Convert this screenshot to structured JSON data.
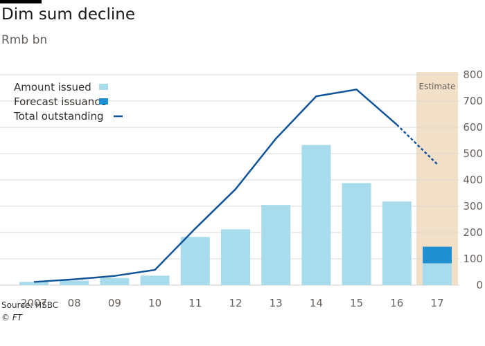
{
  "title": "Dim sum decline",
  "subtitle": "Rmb bn",
  "source": "Source: HSBC",
  "copyright": "© FT",
  "colors": {
    "amount_issued": "#a8dcec",
    "forecast_issuance": "#1e8fd0",
    "total_outstanding": "#0f5499",
    "estimate_band": "#f2dfc8",
    "grid": "#ddd8d2"
  },
  "legend": [
    {
      "key": "amount_issued",
      "label": "Amount issued"
    },
    {
      "key": "forecast_issuance",
      "label": "Forecast issuance"
    },
    {
      "key": "total_outstanding",
      "label": "Total outstanding"
    }
  ],
  "chart_data": {
    "type": "bar",
    "categories": [
      "2007",
      "08",
      "09",
      "10",
      "11",
      "12",
      "13",
      "14",
      "15",
      "16",
      "17"
    ],
    "series": [
      {
        "name": "Amount issued",
        "type": "bar",
        "values": [
          12,
          17,
          27,
          36,
          183,
          212,
          305,
          533,
          388,
          318,
          83
        ]
      },
      {
        "name": "Forecast issuance",
        "type": "bar",
        "stacked_on": "Amount issued",
        "values": [
          null,
          null,
          null,
          null,
          null,
          null,
          null,
          null,
          null,
          null,
          63
        ]
      },
      {
        "name": "Total outstanding",
        "type": "line",
        "values": [
          12,
          22,
          35,
          58,
          215,
          365,
          557,
          718,
          744,
          610,
          460
        ],
        "dashed_from": "16"
      }
    ],
    "estimate_label": "Estimate",
    "estimate_categories": [
      "17"
    ],
    "ylim": [
      0,
      800
    ],
    "yticks": [
      0,
      100,
      200,
      300,
      400,
      500,
      600,
      700,
      800
    ],
    "y_axis_side": "right",
    "grid": true,
    "legend_position": "top-left"
  }
}
